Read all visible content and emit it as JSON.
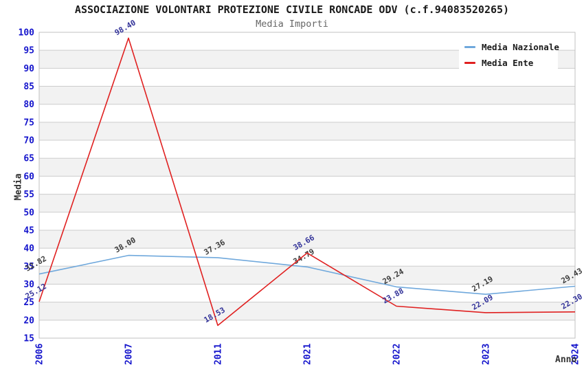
{
  "title": "ASSOCIAZIONE VOLONTARI PROTEZIONE CIVILE RONCADE ODV (c.f.94083520265)",
  "subtitle": "Media Importi",
  "chart_data": {
    "type": "line",
    "title": "ASSOCIAZIONE VOLONTARI PROTEZIONE CIVILE RONCADE ODV (c.f.94083520265)",
    "subtitle": "Media Importi",
    "xlabel": "Anno",
    "ylabel": "Media",
    "categories": [
      "2006",
      "2007",
      "2011",
      "2021",
      "2022",
      "2023",
      "2024"
    ],
    "series": [
      {
        "name": "Media Nazionale",
        "color": "#6FA8DC",
        "label_color": "#3C3C3C",
        "values": [
          32.82,
          38.0,
          37.36,
          34.79,
          29.24,
          27.19,
          29.43
        ]
      },
      {
        "name": "Media Ente",
        "color": "#E02020",
        "label_color": "#333399",
        "values": [
          25.12,
          98.4,
          18.53,
          38.66,
          23.88,
          22.09,
          22.3
        ]
      }
    ],
    "ylim": [
      15,
      100
    ],
    "ytick_step": 5,
    "grid": true,
    "legend_position": "top-right",
    "data_label_decimals": 2,
    "colors": {
      "tick_label": "#1414CC",
      "axis_title": "#333333",
      "grid_line": "#CCCCCC",
      "band_fill": "#F2F2F2",
      "plot_border": "#C0C0C0",
      "title": "#1A1A1A",
      "subtitle": "#666666",
      "legend_text": "#1A1A1A",
      "background": "#FFFFFF"
    }
  }
}
